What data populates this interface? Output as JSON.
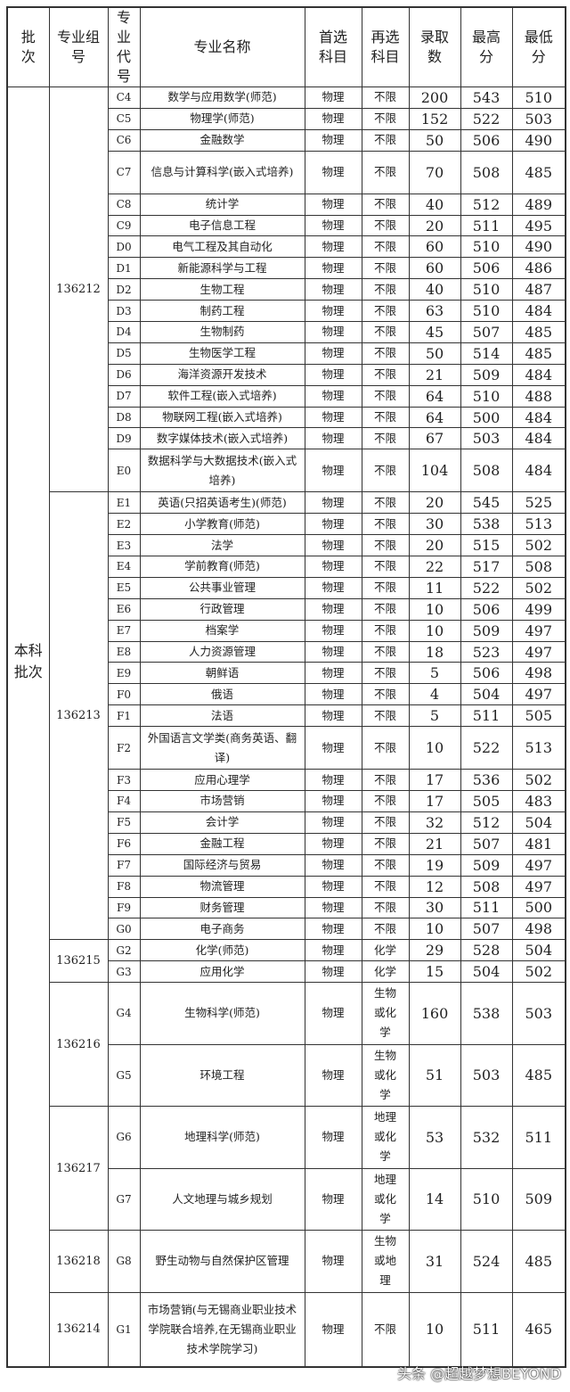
{
  "header": {
    "batch": "批次",
    "group": "专业组号",
    "code": "专业代号",
    "name": "专业名称",
    "first": "首选科目",
    "second": "再选科目",
    "admit": "录取数",
    "max": "最高分",
    "min": "最低分"
  },
  "batch": "本科批次",
  "groups": [
    {
      "id": "136212",
      "rows": [
        {
          "code": "C4",
          "name": "数学与应用数学(师范)",
          "first": "物理",
          "second": "不限",
          "admit": "200",
          "max": "543",
          "min": "510"
        },
        {
          "code": "C5",
          "name": "物理学(师范)",
          "first": "物理",
          "second": "不限",
          "admit": "152",
          "max": "522",
          "min": "503"
        },
        {
          "code": "C6",
          "name": "金融数学",
          "first": "物理",
          "second": "不限",
          "admit": "50",
          "max": "506",
          "min": "490"
        },
        {
          "code": "C7",
          "name": "信息与计算科学(嵌入式培养)",
          "first": "物理",
          "second": "不限",
          "admit": "70",
          "max": "508",
          "min": "485",
          "lines": 2
        },
        {
          "code": "C8",
          "name": "统计学",
          "first": "物理",
          "second": "不限",
          "admit": "40",
          "max": "512",
          "min": "489"
        },
        {
          "code": "C9",
          "name": "电子信息工程",
          "first": "物理",
          "second": "不限",
          "admit": "20",
          "max": "511",
          "min": "495"
        },
        {
          "code": "D0",
          "name": "电气工程及其自动化",
          "first": "物理",
          "second": "不限",
          "admit": "60",
          "max": "510",
          "min": "490"
        },
        {
          "code": "D1",
          "name": "新能源科学与工程",
          "first": "物理",
          "second": "不限",
          "admit": "60",
          "max": "506",
          "min": "486"
        },
        {
          "code": "D2",
          "name": "生物工程",
          "first": "物理",
          "second": "不限",
          "admit": "40",
          "max": "510",
          "min": "487"
        },
        {
          "code": "D3",
          "name": "制药工程",
          "first": "物理",
          "second": "不限",
          "admit": "63",
          "max": "510",
          "min": "484"
        },
        {
          "code": "D4",
          "name": "生物制药",
          "first": "物理",
          "second": "不限",
          "admit": "45",
          "max": "507",
          "min": "485"
        },
        {
          "code": "D5",
          "name": "生物医学工程",
          "first": "物理",
          "second": "不限",
          "admit": "50",
          "max": "514",
          "min": "485"
        },
        {
          "code": "D6",
          "name": "海洋资源开发技术",
          "first": "物理",
          "second": "不限",
          "admit": "21",
          "max": "509",
          "min": "484"
        },
        {
          "code": "D7",
          "name": "软件工程(嵌入式培养)",
          "first": "物理",
          "second": "不限",
          "admit": "64",
          "max": "510",
          "min": "488"
        },
        {
          "code": "D8",
          "name": "物联网工程(嵌入式培养)",
          "first": "物理",
          "second": "不限",
          "admit": "64",
          "max": "500",
          "min": "484"
        },
        {
          "code": "D9",
          "name": "数字媒体技术(嵌入式培养)",
          "first": "物理",
          "second": "不限",
          "admit": "67",
          "max": "503",
          "min": "484"
        },
        {
          "code": "E0",
          "name": "数据科学与大数据技术(嵌入式培养)",
          "first": "物理",
          "second": "不限",
          "admit": "104",
          "max": "508",
          "min": "484",
          "lines": 2
        }
      ]
    },
    {
      "id": "136213",
      "rows": [
        {
          "code": "E1",
          "name": "英语(只招英语考生)(师范)",
          "first": "物理",
          "second": "不限",
          "admit": "20",
          "max": "545",
          "min": "525"
        },
        {
          "code": "E2",
          "name": "小学教育(师范)",
          "first": "物理",
          "second": "不限",
          "admit": "30",
          "max": "538",
          "min": "513"
        },
        {
          "code": "E3",
          "name": "法学",
          "first": "物理",
          "second": "不限",
          "admit": "20",
          "max": "515",
          "min": "502"
        },
        {
          "code": "E4",
          "name": "学前教育(师范)",
          "first": "物理",
          "second": "不限",
          "admit": "22",
          "max": "517",
          "min": "508"
        },
        {
          "code": "E5",
          "name": "公共事业管理",
          "first": "物理",
          "second": "不限",
          "admit": "11",
          "max": "522",
          "min": "502"
        },
        {
          "code": "E6",
          "name": "行政管理",
          "first": "物理",
          "second": "不限",
          "admit": "10",
          "max": "506",
          "min": "499"
        },
        {
          "code": "E7",
          "name": "档案学",
          "first": "物理",
          "second": "不限",
          "admit": "10",
          "max": "509",
          "min": "497"
        },
        {
          "code": "E8",
          "name": "人力资源管理",
          "first": "物理",
          "second": "不限",
          "admit": "18",
          "max": "523",
          "min": "497"
        },
        {
          "code": "E9",
          "name": "朝鲜语",
          "first": "物理",
          "second": "不限",
          "admit": "5",
          "max": "506",
          "min": "498"
        },
        {
          "code": "F0",
          "name": "俄语",
          "first": "物理",
          "second": "不限",
          "admit": "4",
          "max": "504",
          "min": "497"
        },
        {
          "code": "F1",
          "name": "法语",
          "first": "物理",
          "second": "不限",
          "admit": "5",
          "max": "511",
          "min": "505"
        },
        {
          "code": "F2",
          "name": "外国语言文学类(商务英语、翻译)",
          "first": "物理",
          "second": "不限",
          "admit": "10",
          "max": "522",
          "min": "513",
          "lines": 2
        },
        {
          "code": "F3",
          "name": "应用心理学",
          "first": "物理",
          "second": "不限",
          "admit": "17",
          "max": "536",
          "min": "502"
        },
        {
          "code": "F4",
          "name": "市场营销",
          "first": "物理",
          "second": "不限",
          "admit": "17",
          "max": "505",
          "min": "483"
        },
        {
          "code": "F5",
          "name": "会计学",
          "first": "物理",
          "second": "不限",
          "admit": "32",
          "max": "512",
          "min": "504"
        },
        {
          "code": "F6",
          "name": "金融工程",
          "first": "物理",
          "second": "不限",
          "admit": "21",
          "max": "507",
          "min": "481"
        },
        {
          "code": "F7",
          "name": "国际经济与贸易",
          "first": "物理",
          "second": "不限",
          "admit": "19",
          "max": "509",
          "min": "497"
        },
        {
          "code": "F8",
          "name": "物流管理",
          "first": "物理",
          "second": "不限",
          "admit": "12",
          "max": "508",
          "min": "497"
        },
        {
          "code": "F9",
          "name": "财务管理",
          "first": "物理",
          "second": "不限",
          "admit": "30",
          "max": "511",
          "min": "500"
        },
        {
          "code": "G0",
          "name": "电子商务",
          "first": "物理",
          "second": "不限",
          "admit": "10",
          "max": "507",
          "min": "498"
        }
      ]
    },
    {
      "id": "136215",
      "rows": [
        {
          "code": "G2",
          "name": "化学(师范)",
          "first": "物理",
          "second": "化学",
          "admit": "29",
          "max": "528",
          "min": "504"
        },
        {
          "code": "G3",
          "name": "应用化学",
          "first": "物理",
          "second": "化学",
          "admit": "15",
          "max": "504",
          "min": "502"
        }
      ]
    },
    {
      "id": "136216",
      "rows": [
        {
          "code": "G4",
          "name": "生物科学(师范)",
          "first": "物理",
          "second": "生物或化学",
          "admit": "160",
          "max": "538",
          "min": "503",
          "lines": 3
        },
        {
          "code": "G5",
          "name": "环境工程",
          "first": "物理",
          "second": "生物或化学",
          "admit": "51",
          "max": "503",
          "min": "485",
          "lines": 3
        }
      ]
    },
    {
      "id": "136217",
      "rows": [
        {
          "code": "G6",
          "name": "地理科学(师范)",
          "first": "物理",
          "second": "地理或化学",
          "admit": "53",
          "max": "532",
          "min": "511",
          "lines": 3
        },
        {
          "code": "G7",
          "name": "人文地理与城乡规划",
          "first": "物理",
          "second": "地理或化学",
          "admit": "14",
          "max": "510",
          "min": "509",
          "lines": 3
        }
      ]
    },
    {
      "id": "136218",
      "rows": [
        {
          "code": "G8",
          "name": "野生动物与自然保护区管理",
          "first": "物理",
          "second": "生物或地理",
          "admit": "31",
          "max": "524",
          "min": "485",
          "lines": 3
        }
      ]
    },
    {
      "id": "136214",
      "rows": [
        {
          "code": "G1",
          "name": "市场营销(与无锡商业职业技术学院联合培养,在无锡商业职业技术学院学习)",
          "first": "物理",
          "second": "不限",
          "admit": "10",
          "max": "511",
          "min": "465",
          "lines": 4
        }
      ]
    }
  ],
  "watermark": "头条 @超越梦想BEYOND"
}
